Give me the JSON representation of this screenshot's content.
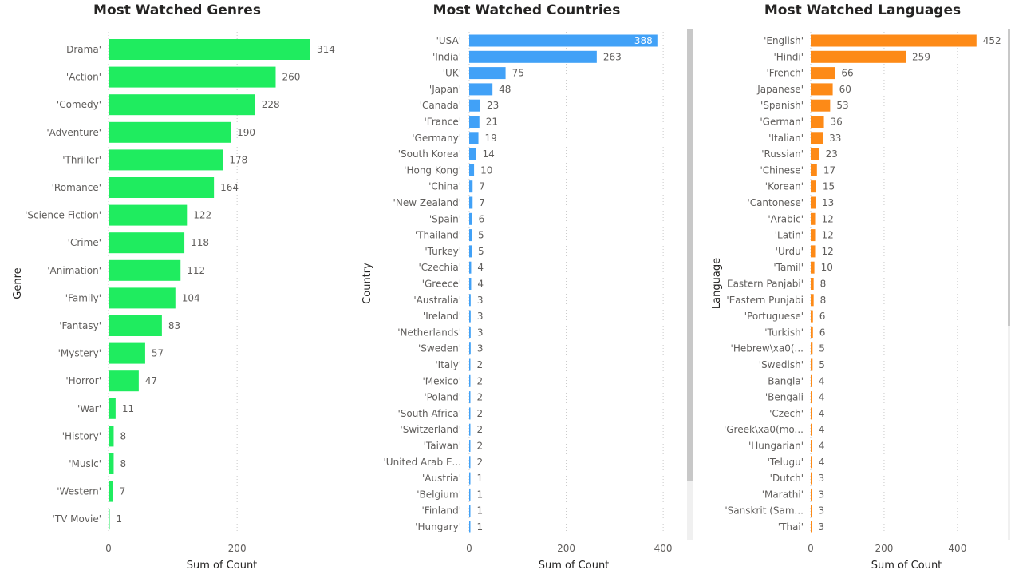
{
  "colors": {
    "genres": "#1fec5f",
    "countries": "#41a1f7",
    "languages": "#fd8a17",
    "scrollbar": "#c8c8c8",
    "scroll_track": "#f0f0f0"
  },
  "chart_data": [
    {
      "type": "bar",
      "orientation": "horizontal",
      "title": "Most Watched Genres",
      "xlabel": "Sum of Count",
      "ylabel": "Genre",
      "xlim": [
        0,
        314
      ],
      "xticks": [
        0,
        200
      ],
      "grid": true,
      "categories": [
        "'Drama'",
        "'Action'",
        "'Comedy'",
        "'Adventure'",
        "'Thriller'",
        "'Romance'",
        "'Science Fiction'",
        "'Crime'",
        "'Animation'",
        "'Family'",
        "'Fantasy'",
        "'Mystery'",
        "'Horror'",
        "'War'",
        "'History'",
        "'Music'",
        "'Western'",
        "'TV Movie'"
      ],
      "values": [
        314,
        260,
        228,
        190,
        178,
        164,
        122,
        118,
        112,
        104,
        83,
        57,
        47,
        11,
        8,
        8,
        7,
        1
      ]
    },
    {
      "type": "bar",
      "orientation": "horizontal",
      "title": "Most Watched Countries",
      "xlabel": "Sum of Count",
      "ylabel": "Country",
      "xlim": [
        0,
        388
      ],
      "xticks": [
        0,
        200,
        400
      ],
      "grid": true,
      "categories": [
        "'USA'",
        "'India'",
        "'UK'",
        "'Japan'",
        "'Canada'",
        "'France'",
        "'Germany'",
        "'South Korea'",
        "'Hong Kong'",
        "'China'",
        "'New Zealand'",
        "'Spain'",
        "'Thailand'",
        "'Turkey'",
        "'Czechia'",
        "'Greece'",
        "'Australia'",
        "'Ireland'",
        "'Netherlands'",
        "'Sweden'",
        "'Italy'",
        "'Mexico'",
        "'Poland'",
        "'South Africa'",
        "'Switzerland'",
        "'Taiwan'",
        "'United Arab E...",
        "'Austria'",
        "'Belgium'",
        "'Finland'",
        "'Hungary'"
      ],
      "values": [
        388,
        263,
        75,
        48,
        23,
        21,
        19,
        14,
        10,
        7,
        7,
        6,
        5,
        5,
        4,
        4,
        3,
        3,
        3,
        3,
        2,
        2,
        2,
        2,
        2,
        2,
        2,
        1,
        1,
        1,
        1
      ]
    },
    {
      "type": "bar",
      "orientation": "horizontal",
      "title": "Most Watched Languages",
      "xlabel": "Sum of Count",
      "ylabel": "Language",
      "xlim": [
        0,
        452
      ],
      "xticks": [
        0,
        200,
        400
      ],
      "grid": true,
      "categories": [
        "'English'",
        "'Hindi'",
        "'French'",
        "'Japanese'",
        "'Spanish'",
        "'German'",
        "'Italian'",
        "'Russian'",
        "'Chinese'",
        "'Korean'",
        "'Cantonese'",
        "'Arabic'",
        "'Latin'",
        "'Urdu'",
        "'Tamil'",
        "Eastern Panjabi'",
        "'Eastern Punjabi",
        "'Portuguese'",
        "'Turkish'",
        "'Hebrew\\xa0(...",
        "'Swedish'",
        "Bangla'",
        "'Bengali",
        "'Czech'",
        "'Greek\\xa0(mo...",
        "'Hungarian'",
        "'Telugu'",
        "'Dutch'",
        "'Marathi'",
        "'Sanskrit (Sam...",
        "'Thai'"
      ],
      "values": [
        452,
        259,
        66,
        60,
        53,
        36,
        33,
        23,
        17,
        15,
        13,
        12,
        12,
        12,
        10,
        8,
        8,
        6,
        6,
        5,
        5,
        4,
        4,
        4,
        4,
        4,
        4,
        3,
        3,
        3,
        3
      ]
    }
  ]
}
